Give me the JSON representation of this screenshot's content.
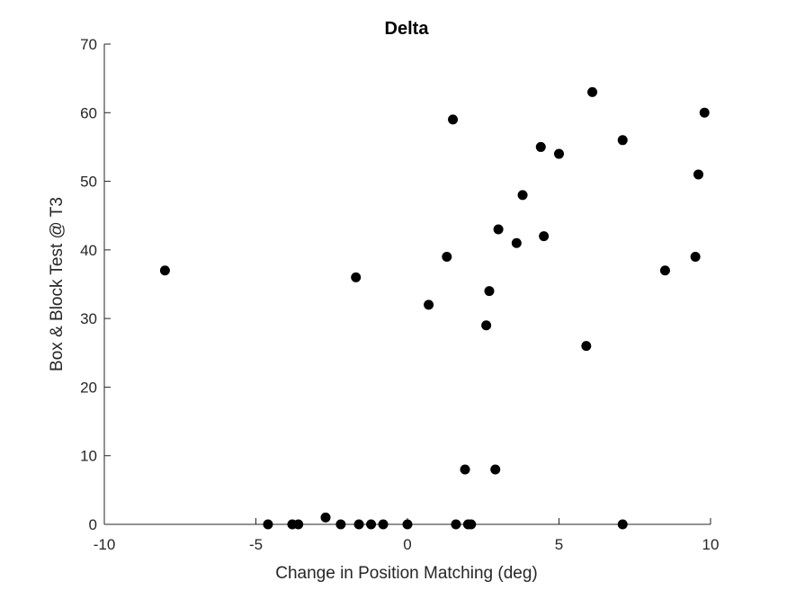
{
  "chart_data": {
    "type": "scatter",
    "title": "Delta",
    "xlabel": "Change in Position Matching (deg)",
    "ylabel": "Box & Block Test @ T3",
    "xlim": [
      -10,
      10
    ],
    "ylim": [
      0,
      70
    ],
    "xticks": [
      -10,
      -5,
      0,
      5,
      10
    ],
    "yticks": [
      0,
      10,
      20,
      30,
      40,
      50,
      60,
      70
    ],
    "grid": false,
    "marker_color": "#000000",
    "points": [
      {
        "x": -8.0,
        "y": 37
      },
      {
        "x": -1.7,
        "y": 36
      },
      {
        "x": -4.6,
        "y": 0
      },
      {
        "x": -3.8,
        "y": 0
      },
      {
        "x": -3.6,
        "y": 0
      },
      {
        "x": -2.7,
        "y": 1
      },
      {
        "x": -2.2,
        "y": 0
      },
      {
        "x": -1.6,
        "y": 0
      },
      {
        "x": -1.2,
        "y": 0
      },
      {
        "x": -0.8,
        "y": 0
      },
      {
        "x": 0.0,
        "y": 0
      },
      {
        "x": 0.7,
        "y": 32
      },
      {
        "x": 1.3,
        "y": 39
      },
      {
        "x": 1.5,
        "y": 59
      },
      {
        "x": 1.6,
        "y": 0
      },
      {
        "x": 1.9,
        "y": 8
      },
      {
        "x": 2.0,
        "y": 0
      },
      {
        "x": 2.1,
        "y": 0
      },
      {
        "x": 2.6,
        "y": 29
      },
      {
        "x": 2.7,
        "y": 34
      },
      {
        "x": 2.9,
        "y": 8
      },
      {
        "x": 3.0,
        "y": 43
      },
      {
        "x": 3.6,
        "y": 41
      },
      {
        "x": 3.8,
        "y": 48
      },
      {
        "x": 4.4,
        "y": 55
      },
      {
        "x": 4.5,
        "y": 42
      },
      {
        "x": 5.0,
        "y": 54
      },
      {
        "x": 5.9,
        "y": 26
      },
      {
        "x": 6.1,
        "y": 63
      },
      {
        "x": 7.1,
        "y": 56
      },
      {
        "x": 7.1,
        "y": 0
      },
      {
        "x": 8.5,
        "y": 37
      },
      {
        "x": 9.5,
        "y": 39
      },
      {
        "x": 9.6,
        "y": 51
      },
      {
        "x": 9.8,
        "y": 60
      }
    ]
  }
}
